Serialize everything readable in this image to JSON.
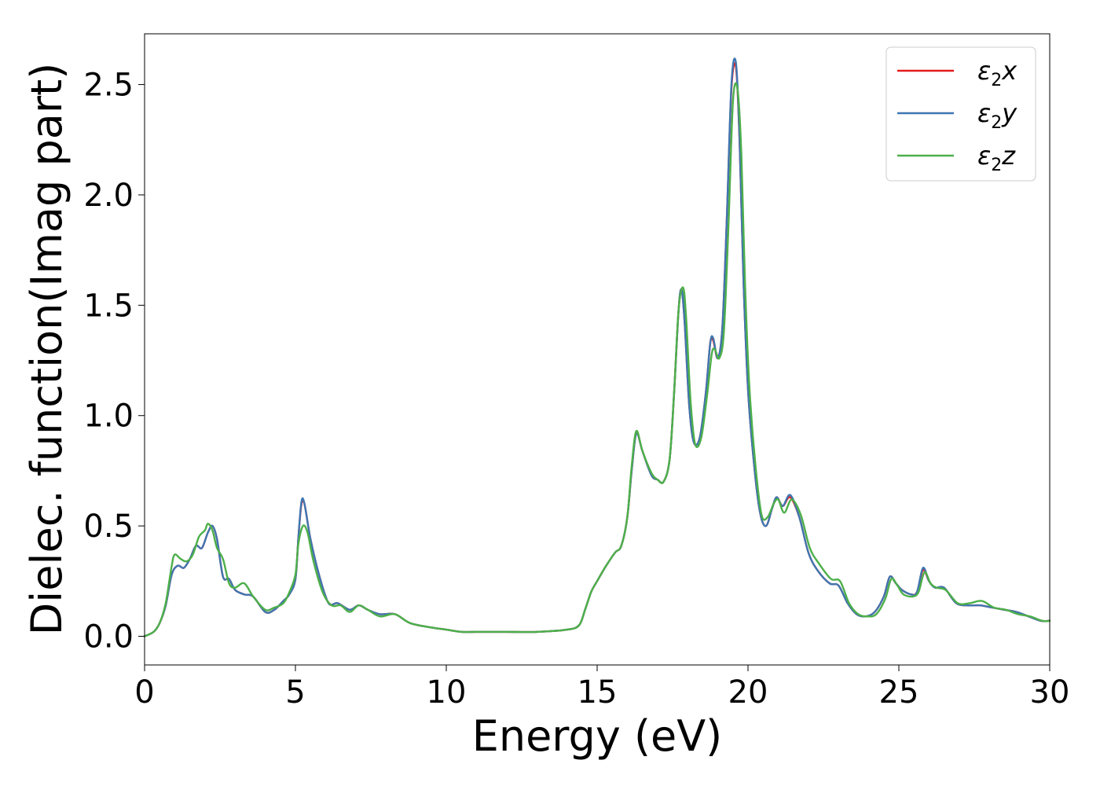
{
  "chart_data": {
    "type": "line",
    "xlabel": "Energy (eV)",
    "ylabel": "Dielec. function(Imag part)",
    "xlim": [
      0,
      30
    ],
    "ylim": [
      -0.13,
      2.73
    ],
    "xticks": [
      "0",
      "5",
      "10",
      "15",
      "20",
      "25",
      "30"
    ],
    "yticks": [
      "0.0",
      "0.5",
      "1.0",
      "1.5",
      "2.0",
      "2.5"
    ],
    "grid": false,
    "legend_position": "top-right",
    "series": [
      {
        "name": "ε2x",
        "legend_base": "ε",
        "legend_sub": "2",
        "legend_var": "x",
        "color": "#e41a1c",
        "x": [
          0,
          0.3,
          0.5,
          0.7,
          0.9,
          1.1,
          1.3,
          1.5,
          1.7,
          1.9,
          2.1,
          2.25,
          2.4,
          2.6,
          2.8,
          3.0,
          3.3,
          3.6,
          4.0,
          4.3,
          4.6,
          4.8,
          5.0,
          5.1,
          5.2,
          5.3,
          5.5,
          5.8,
          6.1,
          6.4,
          6.8,
          7.1,
          7.4,
          7.8,
          8.3,
          8.8,
          9.5,
          10.0,
          10.5,
          11.0,
          11.5,
          12.0,
          13.0,
          14.0,
          14.4,
          14.6,
          14.8,
          15.0,
          15.3,
          15.6,
          15.8,
          16.0,
          16.15,
          16.3,
          16.5,
          16.8,
          17.0,
          17.2,
          17.4,
          17.55,
          17.7,
          17.8,
          17.9,
          18.05,
          18.2,
          18.4,
          18.6,
          18.75,
          18.85,
          19.0,
          19.15,
          19.3,
          19.45,
          19.6,
          19.72,
          19.85,
          20.0,
          20.2,
          20.4,
          20.6,
          20.8,
          20.95,
          21.15,
          21.4,
          21.7,
          22.0,
          22.3,
          22.7,
          23.0,
          23.3,
          23.6,
          23.9,
          24.2,
          24.5,
          24.7,
          24.9,
          25.1,
          25.4,
          25.6,
          25.8,
          26.0,
          26.2,
          26.5,
          26.9,
          27.3,
          27.7,
          28.1,
          28.5,
          28.9,
          29.3,
          29.7,
          30.0
        ],
        "values": [
          0.0,
          0.02,
          0.06,
          0.14,
          0.28,
          0.32,
          0.31,
          0.35,
          0.41,
          0.4,
          0.47,
          0.5,
          0.44,
          0.27,
          0.26,
          0.21,
          0.19,
          0.18,
          0.11,
          0.12,
          0.16,
          0.19,
          0.26,
          0.45,
          0.6,
          0.6,
          0.44,
          0.27,
          0.15,
          0.15,
          0.12,
          0.14,
          0.12,
          0.1,
          0.1,
          0.06,
          0.04,
          0.03,
          0.02,
          0.02,
          0.02,
          0.02,
          0.02,
          0.03,
          0.05,
          0.12,
          0.2,
          0.25,
          0.32,
          0.38,
          0.41,
          0.54,
          0.76,
          0.92,
          0.84,
          0.73,
          0.71,
          0.7,
          0.8,
          1.1,
          1.48,
          1.57,
          1.42,
          1.05,
          0.88,
          0.9,
          1.1,
          1.33,
          1.34,
          1.26,
          1.4,
          1.9,
          2.48,
          2.58,
          2.25,
          1.62,
          1.12,
          0.78,
          0.56,
          0.5,
          0.58,
          0.63,
          0.59,
          0.63,
          0.54,
          0.38,
          0.3,
          0.24,
          0.23,
          0.15,
          0.1,
          0.09,
          0.11,
          0.18,
          0.27,
          0.24,
          0.21,
          0.19,
          0.2,
          0.3,
          0.25,
          0.22,
          0.22,
          0.15,
          0.14,
          0.14,
          0.13,
          0.12,
          0.11,
          0.09,
          0.07,
          0.07
        ]
      },
      {
        "name": "ε2y",
        "legend_base": "ε",
        "legend_sub": "2",
        "legend_var": "y",
        "color": "#3f76b1",
        "x": [
          0,
          0.3,
          0.5,
          0.7,
          0.9,
          1.1,
          1.3,
          1.5,
          1.7,
          1.9,
          2.1,
          2.25,
          2.4,
          2.6,
          2.8,
          3.0,
          3.3,
          3.6,
          4.0,
          4.3,
          4.6,
          4.8,
          5.0,
          5.1,
          5.2,
          5.3,
          5.5,
          5.8,
          6.1,
          6.4,
          6.8,
          7.1,
          7.4,
          7.8,
          8.3,
          8.8,
          9.5,
          10.0,
          10.5,
          11.0,
          11.5,
          12.0,
          13.0,
          14.0,
          14.4,
          14.6,
          14.8,
          15.0,
          15.3,
          15.6,
          15.8,
          16.0,
          16.15,
          16.3,
          16.5,
          16.8,
          17.0,
          17.2,
          17.4,
          17.55,
          17.7,
          17.8,
          17.9,
          18.05,
          18.2,
          18.4,
          18.6,
          18.75,
          18.85,
          19.0,
          19.15,
          19.3,
          19.45,
          19.6,
          19.72,
          19.85,
          20.0,
          20.2,
          20.4,
          20.6,
          20.8,
          20.95,
          21.15,
          21.4,
          21.7,
          22.0,
          22.3,
          22.7,
          23.0,
          23.3,
          23.6,
          23.9,
          24.2,
          24.5,
          24.7,
          24.9,
          25.1,
          25.4,
          25.6,
          25.8,
          26.0,
          26.2,
          26.5,
          26.9,
          27.3,
          27.7,
          28.1,
          28.5,
          28.9,
          29.3,
          29.7,
          30.0
        ],
        "values": [
          0.0,
          0.02,
          0.06,
          0.14,
          0.28,
          0.32,
          0.31,
          0.35,
          0.41,
          0.4,
          0.47,
          0.5,
          0.44,
          0.27,
          0.26,
          0.21,
          0.19,
          0.18,
          0.11,
          0.12,
          0.16,
          0.19,
          0.26,
          0.45,
          0.61,
          0.6,
          0.44,
          0.27,
          0.15,
          0.15,
          0.12,
          0.14,
          0.12,
          0.1,
          0.1,
          0.06,
          0.04,
          0.03,
          0.02,
          0.02,
          0.02,
          0.02,
          0.02,
          0.03,
          0.05,
          0.12,
          0.2,
          0.25,
          0.32,
          0.38,
          0.41,
          0.54,
          0.76,
          0.92,
          0.84,
          0.73,
          0.71,
          0.7,
          0.8,
          1.1,
          1.48,
          1.57,
          1.42,
          1.05,
          0.88,
          0.9,
          1.1,
          1.33,
          1.35,
          1.26,
          1.4,
          1.9,
          2.5,
          2.6,
          2.26,
          1.62,
          1.12,
          0.78,
          0.56,
          0.5,
          0.58,
          0.63,
          0.59,
          0.64,
          0.54,
          0.38,
          0.3,
          0.24,
          0.23,
          0.15,
          0.1,
          0.09,
          0.11,
          0.18,
          0.27,
          0.24,
          0.21,
          0.19,
          0.2,
          0.31,
          0.25,
          0.22,
          0.22,
          0.15,
          0.14,
          0.14,
          0.13,
          0.12,
          0.11,
          0.09,
          0.07,
          0.07
        ]
      },
      {
        "name": "ε2z",
        "legend_base": "ε",
        "legend_sub": "2",
        "legend_var": "z",
        "color": "#4daf4a",
        "x": [
          0,
          0.3,
          0.5,
          0.7,
          0.9,
          1.0,
          1.2,
          1.4,
          1.6,
          1.8,
          2.0,
          2.1,
          2.25,
          2.4,
          2.6,
          2.8,
          3.0,
          3.3,
          3.6,
          4.0,
          4.3,
          4.6,
          4.8,
          5.0,
          5.1,
          5.25,
          5.4,
          5.6,
          5.9,
          6.2,
          6.5,
          6.8,
          7.1,
          7.4,
          7.8,
          8.3,
          8.8,
          9.5,
          10.0,
          10.5,
          11.0,
          11.5,
          12.0,
          13.0,
          14.0,
          14.4,
          14.6,
          14.8,
          15.0,
          15.3,
          15.6,
          15.8,
          16.0,
          16.15,
          16.3,
          16.5,
          16.8,
          17.0,
          17.2,
          17.4,
          17.55,
          17.7,
          17.85,
          17.95,
          18.1,
          18.25,
          18.45,
          18.65,
          18.8,
          18.9,
          19.05,
          19.2,
          19.35,
          19.5,
          19.65,
          19.78,
          19.9,
          20.05,
          20.25,
          20.45,
          20.65,
          20.85,
          21.0,
          21.2,
          21.45,
          21.75,
          22.05,
          22.35,
          22.75,
          23.05,
          23.35,
          23.65,
          23.95,
          24.25,
          24.55,
          24.75,
          24.95,
          25.15,
          25.45,
          25.65,
          25.85,
          26.05,
          26.25,
          26.55,
          26.95,
          27.35,
          27.75,
          28.15,
          28.55,
          28.95,
          29.35,
          29.75,
          30.0
        ],
        "values": [
          0.0,
          0.02,
          0.06,
          0.15,
          0.32,
          0.37,
          0.35,
          0.34,
          0.37,
          0.45,
          0.48,
          0.51,
          0.48,
          0.4,
          0.35,
          0.24,
          0.22,
          0.24,
          0.18,
          0.12,
          0.13,
          0.15,
          0.2,
          0.28,
          0.42,
          0.5,
          0.47,
          0.34,
          0.2,
          0.14,
          0.14,
          0.11,
          0.14,
          0.12,
          0.09,
          0.1,
          0.06,
          0.04,
          0.03,
          0.02,
          0.02,
          0.02,
          0.02,
          0.02,
          0.03,
          0.05,
          0.12,
          0.2,
          0.25,
          0.32,
          0.38,
          0.41,
          0.54,
          0.78,
          0.93,
          0.84,
          0.74,
          0.71,
          0.7,
          0.8,
          1.1,
          1.48,
          1.58,
          1.44,
          1.06,
          0.87,
          0.9,
          1.1,
          1.28,
          1.3,
          1.26,
          1.38,
          1.85,
          2.42,
          2.48,
          2.18,
          1.6,
          1.12,
          0.77,
          0.55,
          0.54,
          0.6,
          0.62,
          0.56,
          0.62,
          0.55,
          0.4,
          0.33,
          0.26,
          0.25,
          0.15,
          0.1,
          0.09,
          0.1,
          0.17,
          0.26,
          0.23,
          0.19,
          0.18,
          0.2,
          0.29,
          0.24,
          0.22,
          0.21,
          0.15,
          0.15,
          0.16,
          0.13,
          0.12,
          0.1,
          0.09,
          0.07,
          0.07
        ]
      }
    ]
  }
}
